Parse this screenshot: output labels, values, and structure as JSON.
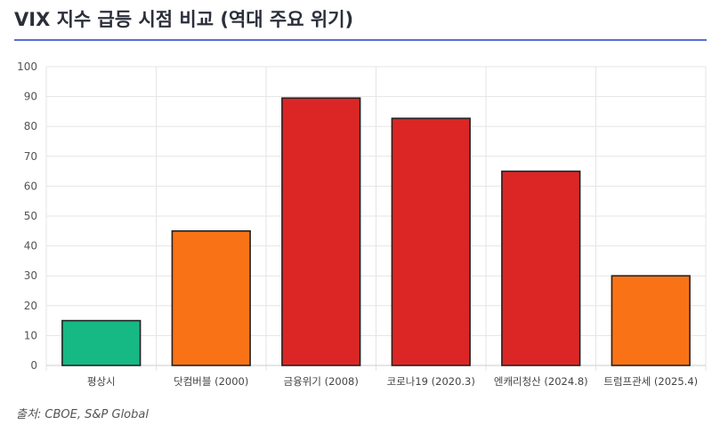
{
  "header": {
    "title": "VIX 지수 급등 시점 비교 (역대 주요 위기)"
  },
  "footer": {
    "source": "출처: CBOE, S&P Global"
  },
  "colors": {
    "title_rule": "#5b6fd6",
    "low": "#16b884",
    "medium": "#f97316",
    "high": "#dc2626",
    "bar_border": "#222222",
    "grid": "#e5e5e5"
  },
  "chart_data": {
    "type": "bar",
    "title": "",
    "xlabel": "",
    "ylabel": "",
    "categories": [
      "평상시",
      "닷컴버블 (2000)",
      "금융위기 (2008)",
      "코로나19 (2020.3)",
      "엔캐리청산 (2024.8)",
      "트럼프관세 (2025.4)"
    ],
    "values": [
      15,
      45,
      89.5,
      82.7,
      65,
      30
    ],
    "bar_colors": [
      "#16b884",
      "#f97316",
      "#dc2626",
      "#dc2626",
      "#dc2626",
      "#f97316"
    ],
    "ylim": [
      0,
      100
    ],
    "yticks": [
      0,
      10,
      20,
      30,
      40,
      50,
      60,
      70,
      80,
      90,
      100
    ],
    "grid": true,
    "legend": "none"
  }
}
